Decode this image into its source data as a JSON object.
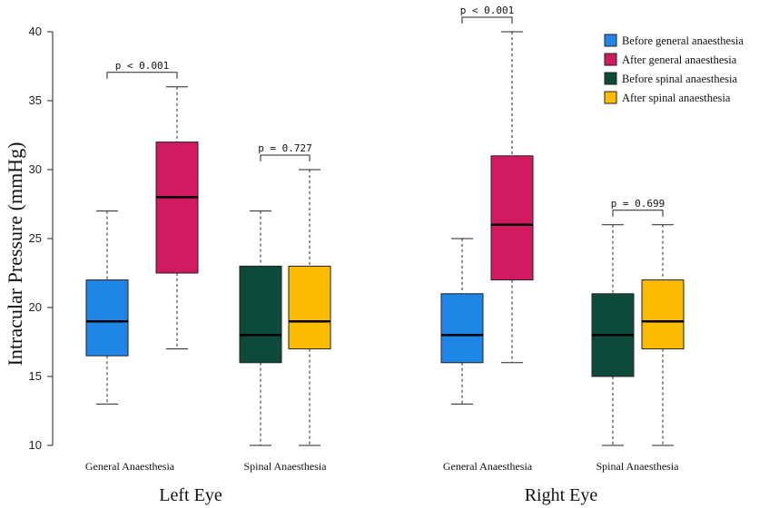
{
  "chart_data": {
    "type": "box",
    "ylabel": "Intracular Pressure (mmHg)",
    "ylim": [
      10,
      40
    ],
    "yticks": [
      10,
      15,
      20,
      25,
      30,
      35,
      40
    ],
    "grid": false,
    "legend_position": "top-right",
    "series": [
      {
        "name": "Before general anaesthesia",
        "color": "#1f85e6"
      },
      {
        "name": "After general anaesthesia",
        "color": "#d11a5f"
      },
      {
        "name": "Before spinal anaesthesia",
        "color": "#0d4a3a"
      },
      {
        "name": "After spinal anaesthesia",
        "color": "#fdbb00"
      }
    ],
    "panels": [
      {
        "label": "Left Eye",
        "groups": [
          {
            "label": "General Anaesthesia",
            "pvalue": "p < 0.001",
            "boxes": [
              {
                "series": 0,
                "min": 13,
                "q1": 16.5,
                "median": 19,
                "q3": 22,
                "max": 27
              },
              {
                "series": 1,
                "min": 17,
                "q1": 22.5,
                "median": 28,
                "q3": 32,
                "max": 36
              }
            ]
          },
          {
            "label": "Spinal Anaesthesia",
            "pvalue": "p = 0.727",
            "boxes": [
              {
                "series": 2,
                "min": 10,
                "q1": 16,
                "median": 18,
                "q3": 23,
                "max": 27
              },
              {
                "series": 3,
                "min": 10,
                "q1": 17,
                "median": 19,
                "q3": 23,
                "max": 30
              }
            ]
          }
        ]
      },
      {
        "label": "Right Eye",
        "groups": [
          {
            "label": "General Anaesthesia",
            "pvalue": "p < 0.001",
            "boxes": [
              {
                "series": 0,
                "min": 13,
                "q1": 16,
                "median": 18,
                "q3": 21,
                "max": 25
              },
              {
                "series": 1,
                "min": 16,
                "q1": 22,
                "median": 26,
                "q3": 31,
                "max": 40
              }
            ]
          },
          {
            "label": "Spinal Anaesthesia",
            "pvalue": "p = 0.699",
            "boxes": [
              {
                "series": 2,
                "min": 10,
                "q1": 15,
                "median": 18,
                "q3": 21,
                "max": 26
              },
              {
                "series": 3,
                "min": 10,
                "q1": 17,
                "median": 19,
                "q3": 22,
                "max": 26
              }
            ]
          }
        ]
      }
    ]
  }
}
